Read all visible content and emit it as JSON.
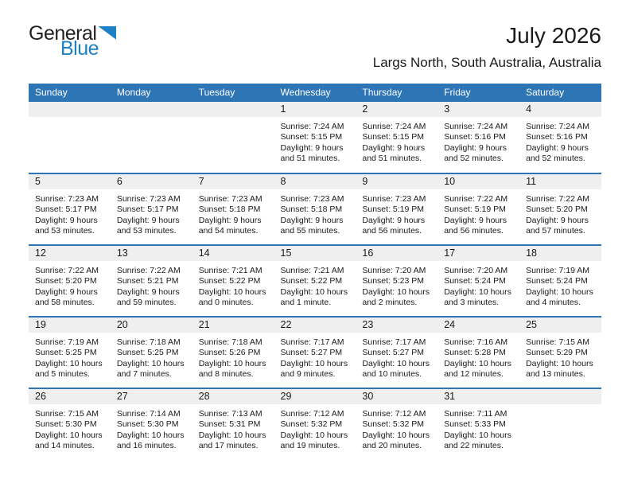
{
  "logo": {
    "general": "General",
    "blue": "Blue"
  },
  "header": {
    "title": "July 2026",
    "subtitle": "Largs North, South Australia, Australia"
  },
  "weekday_headers": [
    "Sunday",
    "Monday",
    "Tuesday",
    "Wednesday",
    "Thursday",
    "Friday",
    "Saturday"
  ],
  "colors": {
    "header_bar_blue": "#2e75b5",
    "week_separator_blue": "#2e75b5",
    "date_band_gray": "#efefef",
    "logo_blue": "#2080c4",
    "text": "#1a1a1a"
  },
  "weeks": [
    [
      null,
      null,
      null,
      {
        "date": "1",
        "sunrise": "Sunrise: 7:24 AM",
        "sunset": "Sunset: 5:15 PM",
        "daylight": [
          "Daylight: 9 hours",
          "and 51 minutes."
        ]
      },
      {
        "date": "2",
        "sunrise": "Sunrise: 7:24 AM",
        "sunset": "Sunset: 5:15 PM",
        "daylight": [
          "Daylight: 9 hours",
          "and 51 minutes."
        ]
      },
      {
        "date": "3",
        "sunrise": "Sunrise: 7:24 AM",
        "sunset": "Sunset: 5:16 PM",
        "daylight": [
          "Daylight: 9 hours",
          "and 52 minutes."
        ]
      },
      {
        "date": "4",
        "sunrise": "Sunrise: 7:24 AM",
        "sunset": "Sunset: 5:16 PM",
        "daylight": [
          "Daylight: 9 hours",
          "and 52 minutes."
        ]
      }
    ],
    [
      {
        "date": "5",
        "sunrise": "Sunrise: 7:23 AM",
        "sunset": "Sunset: 5:17 PM",
        "daylight": [
          "Daylight: 9 hours",
          "and 53 minutes."
        ]
      },
      {
        "date": "6",
        "sunrise": "Sunrise: 7:23 AM",
        "sunset": "Sunset: 5:17 PM",
        "daylight": [
          "Daylight: 9 hours",
          "and 53 minutes."
        ]
      },
      {
        "date": "7",
        "sunrise": "Sunrise: 7:23 AM",
        "sunset": "Sunset: 5:18 PM",
        "daylight": [
          "Daylight: 9 hours",
          "and 54 minutes."
        ]
      },
      {
        "date": "8",
        "sunrise": "Sunrise: 7:23 AM",
        "sunset": "Sunset: 5:18 PM",
        "daylight": [
          "Daylight: 9 hours",
          "and 55 minutes."
        ]
      },
      {
        "date": "9",
        "sunrise": "Sunrise: 7:23 AM",
        "sunset": "Sunset: 5:19 PM",
        "daylight": [
          "Daylight: 9 hours",
          "and 56 minutes."
        ]
      },
      {
        "date": "10",
        "sunrise": "Sunrise: 7:22 AM",
        "sunset": "Sunset: 5:19 PM",
        "daylight": [
          "Daylight: 9 hours",
          "and 56 minutes."
        ]
      },
      {
        "date": "11",
        "sunrise": "Sunrise: 7:22 AM",
        "sunset": "Sunset: 5:20 PM",
        "daylight": [
          "Daylight: 9 hours",
          "and 57 minutes."
        ]
      }
    ],
    [
      {
        "date": "12",
        "sunrise": "Sunrise: 7:22 AM",
        "sunset": "Sunset: 5:20 PM",
        "daylight": [
          "Daylight: 9 hours",
          "and 58 minutes."
        ]
      },
      {
        "date": "13",
        "sunrise": "Sunrise: 7:22 AM",
        "sunset": "Sunset: 5:21 PM",
        "daylight": [
          "Daylight: 9 hours",
          "and 59 minutes."
        ]
      },
      {
        "date": "14",
        "sunrise": "Sunrise: 7:21 AM",
        "sunset": "Sunset: 5:22 PM",
        "daylight": [
          "Daylight: 10 hours",
          "and 0 minutes."
        ]
      },
      {
        "date": "15",
        "sunrise": "Sunrise: 7:21 AM",
        "sunset": "Sunset: 5:22 PM",
        "daylight": [
          "Daylight: 10 hours",
          "and 1 minute."
        ]
      },
      {
        "date": "16",
        "sunrise": "Sunrise: 7:20 AM",
        "sunset": "Sunset: 5:23 PM",
        "daylight": [
          "Daylight: 10 hours",
          "and 2 minutes."
        ]
      },
      {
        "date": "17",
        "sunrise": "Sunrise: 7:20 AM",
        "sunset": "Sunset: 5:24 PM",
        "daylight": [
          "Daylight: 10 hours",
          "and 3 minutes."
        ]
      },
      {
        "date": "18",
        "sunrise": "Sunrise: 7:19 AM",
        "sunset": "Sunset: 5:24 PM",
        "daylight": [
          "Daylight: 10 hours",
          "and 4 minutes."
        ]
      }
    ],
    [
      {
        "date": "19",
        "sunrise": "Sunrise: 7:19 AM",
        "sunset": "Sunset: 5:25 PM",
        "daylight": [
          "Daylight: 10 hours",
          "and 5 minutes."
        ]
      },
      {
        "date": "20",
        "sunrise": "Sunrise: 7:18 AM",
        "sunset": "Sunset: 5:25 PM",
        "daylight": [
          "Daylight: 10 hours",
          "and 7 minutes."
        ]
      },
      {
        "date": "21",
        "sunrise": "Sunrise: 7:18 AM",
        "sunset": "Sunset: 5:26 PM",
        "daylight": [
          "Daylight: 10 hours",
          "and 8 minutes."
        ]
      },
      {
        "date": "22",
        "sunrise": "Sunrise: 7:17 AM",
        "sunset": "Sunset: 5:27 PM",
        "daylight": [
          "Daylight: 10 hours",
          "and 9 minutes."
        ]
      },
      {
        "date": "23",
        "sunrise": "Sunrise: 7:17 AM",
        "sunset": "Sunset: 5:27 PM",
        "daylight": [
          "Daylight: 10 hours",
          "and 10 minutes."
        ]
      },
      {
        "date": "24",
        "sunrise": "Sunrise: 7:16 AM",
        "sunset": "Sunset: 5:28 PM",
        "daylight": [
          "Daylight: 10 hours",
          "and 12 minutes."
        ]
      },
      {
        "date": "25",
        "sunrise": "Sunrise: 7:15 AM",
        "sunset": "Sunset: 5:29 PM",
        "daylight": [
          "Daylight: 10 hours",
          "and 13 minutes."
        ]
      }
    ],
    [
      {
        "date": "26",
        "sunrise": "Sunrise: 7:15 AM",
        "sunset": "Sunset: 5:30 PM",
        "daylight": [
          "Daylight: 10 hours",
          "and 14 minutes."
        ]
      },
      {
        "date": "27",
        "sunrise": "Sunrise: 7:14 AM",
        "sunset": "Sunset: 5:30 PM",
        "daylight": [
          "Daylight: 10 hours",
          "and 16 minutes."
        ]
      },
      {
        "date": "28",
        "sunrise": "Sunrise: 7:13 AM",
        "sunset": "Sunset: 5:31 PM",
        "daylight": [
          "Daylight: 10 hours",
          "and 17 minutes."
        ]
      },
      {
        "date": "29",
        "sunrise": "Sunrise: 7:12 AM",
        "sunset": "Sunset: 5:32 PM",
        "daylight": [
          "Daylight: 10 hours",
          "and 19 minutes."
        ]
      },
      {
        "date": "30",
        "sunrise": "Sunrise: 7:12 AM",
        "sunset": "Sunset: 5:32 PM",
        "daylight": [
          "Daylight: 10 hours",
          "and 20 minutes."
        ]
      },
      {
        "date": "31",
        "sunrise": "Sunrise: 7:11 AM",
        "sunset": "Sunset: 5:33 PM",
        "daylight": [
          "Daylight: 10 hours",
          "and 22 minutes."
        ]
      },
      null
    ]
  ]
}
